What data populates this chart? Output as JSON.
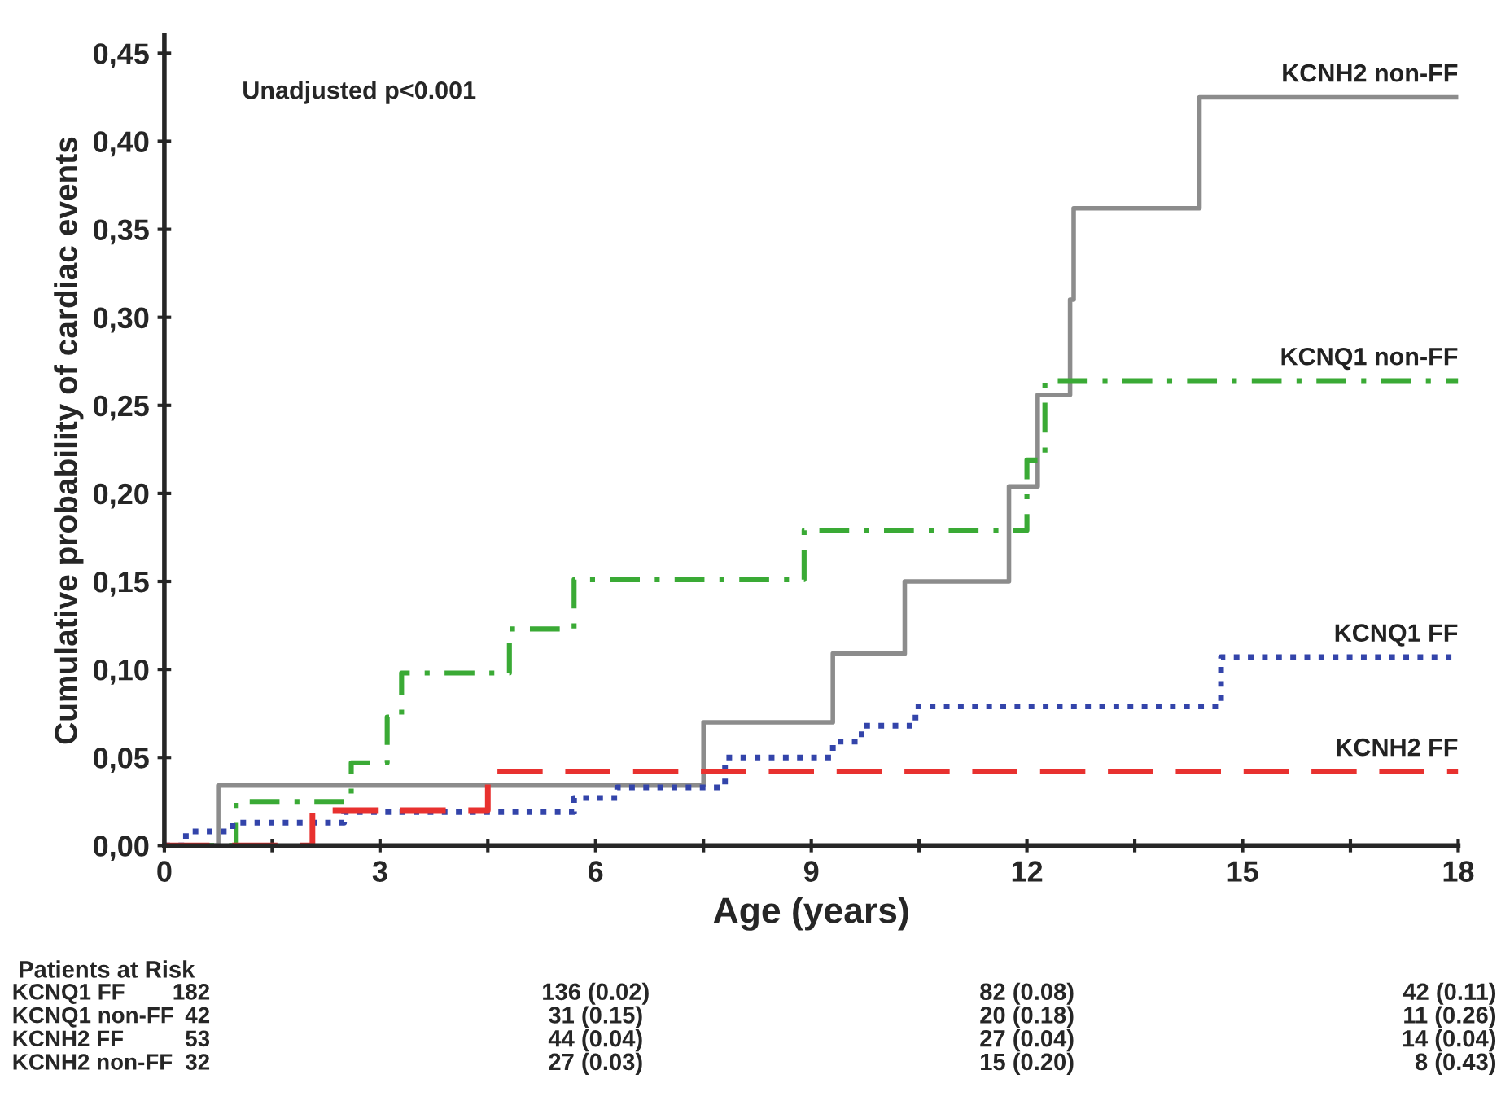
{
  "chart_data": {
    "type": "step",
    "xlabel": "Age (years)",
    "ylabel": "Cumulative probability of cardiac events",
    "xlim": [
      0,
      18
    ],
    "ylim": [
      0,
      0.46
    ],
    "xticks": [
      0,
      {
        "value": 1.5,
        "label": null
      },
      3,
      {
        "value": 4.5,
        "label": null
      },
      6,
      {
        "value": 7.5,
        "label": null
      },
      9,
      {
        "value": 10.5,
        "label": null
      },
      12,
      {
        "value": 13.5,
        "label": null
      },
      15,
      {
        "value": 16.5,
        "label": null
      },
      18
    ],
    "yticks": [
      {
        "value": 0,
        "label": "0,00"
      },
      {
        "value": 0.05,
        "label": "0,05"
      },
      {
        "value": 0.1,
        "label": "0,10"
      },
      {
        "value": 0.15,
        "label": "0,15"
      },
      {
        "value": 0.2,
        "label": "0,20"
      },
      {
        "value": 0.25,
        "label": "0,25"
      },
      {
        "value": 0.3,
        "label": "0,30"
      },
      {
        "value": 0.35,
        "label": "0,35"
      },
      {
        "value": 0.4,
        "label": "0,40"
      },
      {
        "value": 0.45,
        "label": "0,45"
      }
    ],
    "grid": false,
    "legend": false,
    "series": [
      {
        "name": "KCNH2 non-FF",
        "color": "#8c8c8c",
        "line_style": "solid",
        "x": [
          0,
          0.75,
          7.5,
          9.3,
          10.3,
          11.75,
          12.15,
          12.6,
          12.65,
          14.4,
          18
        ],
        "values": [
          0,
          0.034,
          0.07,
          0.109,
          0.15,
          0.204,
          0.256,
          0.31,
          0.362,
          0.425,
          0.425
        ]
      },
      {
        "name": "KCNQ1 non-FF",
        "color": "#3aaa35",
        "line_style": "dashdot",
        "x": [
          0,
          1.0,
          2.6,
          3.1,
          3.3,
          4.8,
          5.7,
          8.9,
          12.0,
          12.25,
          18
        ],
        "values": [
          0,
          0.025,
          0.047,
          0.073,
          0.098,
          0.123,
          0.151,
          0.179,
          0.219,
          0.264,
          0.264
        ]
      },
      {
        "name": "KCNQ1 FF",
        "color": "#3344aa",
        "line_style": "dotted",
        "x": [
          0,
          0.3,
          0.95,
          2.5,
          5.7,
          6.3,
          7.8,
          9.3,
          9.7,
          10.45,
          14.7,
          18
        ],
        "values": [
          0,
          0.008,
          0.013,
          0.019,
          0.027,
          0.033,
          0.05,
          0.059,
          0.068,
          0.079,
          0.107,
          0.107
        ]
      },
      {
        "name": "KCNH2 FF",
        "color": "#e8312f",
        "line_style": "dashed",
        "x": [
          0,
          2.06,
          4.5,
          18
        ],
        "values": [
          0,
          0.02,
          0.042,
          0.042
        ]
      }
    ],
    "annotations": [
      "Unadjusted p<0.001",
      "Patients at Risk",
      "KCNQ1 FF",
      "182",
      "136 (0.02)",
      "82 (0.08)",
      "42 (0.11)",
      "KCNQ1 non-FF",
      "42",
      "31 (0.15)",
      "20 (0.18)",
      "11 (0.26)",
      "KCNH2 FF",
      "53",
      "44 (0.04)",
      "27 (0.04)",
      "14 (0.04)",
      "KCNH2 non-FF",
      "32",
      "27 (0.03)",
      "15 (0.20)",
      "8 (0.43)"
    ]
  }
}
